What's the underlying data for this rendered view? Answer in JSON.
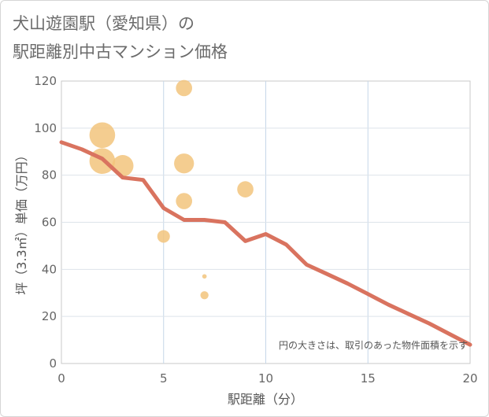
{
  "chart_data": {
    "type": "scatter",
    "title_line1": "犬山遊園駅（愛知県）の",
    "title_line2": "駅距離別中古マンション価格",
    "xlabel": "駅距離（分）",
    "ylabel": "坪（3.3㎡）単価（万円）",
    "xlim": [
      0,
      20
    ],
    "ylim": [
      0,
      120
    ],
    "x_ticks": [
      "0",
      "5",
      "10",
      "15",
      "20"
    ],
    "y_ticks": [
      "0",
      "20",
      "40",
      "60",
      "80",
      "100",
      "120"
    ],
    "grid": true,
    "note": "円の大きさは、取引のあった物件面積を示す",
    "colors": {
      "bubble": "#f2c47c",
      "line": "#d9735f",
      "grid": "#c6d7e8"
    },
    "points": [
      {
        "x": 2,
        "y": 97,
        "size": 5
      },
      {
        "x": 2,
        "y": 86,
        "size": 5
      },
      {
        "x": 3,
        "y": 84,
        "size": 3.5
      },
      {
        "x": 6,
        "y": 117,
        "size": 2
      },
      {
        "x": 6,
        "y": 85,
        "size": 3
      },
      {
        "x": 6,
        "y": 69,
        "size": 2
      },
      {
        "x": 5,
        "y": 54,
        "size": 1.2
      },
      {
        "x": 9,
        "y": 74,
        "size": 2
      },
      {
        "x": 7,
        "y": 37,
        "size": 0.15
      },
      {
        "x": 7,
        "y": 29,
        "size": 0.5
      }
    ],
    "trend": {
      "x": [
        0,
        1,
        2,
        3,
        4,
        5,
        6,
        7,
        8,
        9,
        10,
        11,
        12,
        13,
        14,
        15,
        16,
        17,
        18,
        19,
        20
      ],
      "y": [
        94,
        91,
        87,
        79,
        78,
        66,
        61,
        61,
        60,
        52,
        55,
        50.5,
        42,
        38,
        34,
        29.5,
        25,
        21,
        17,
        12.5,
        8
      ]
    }
  }
}
